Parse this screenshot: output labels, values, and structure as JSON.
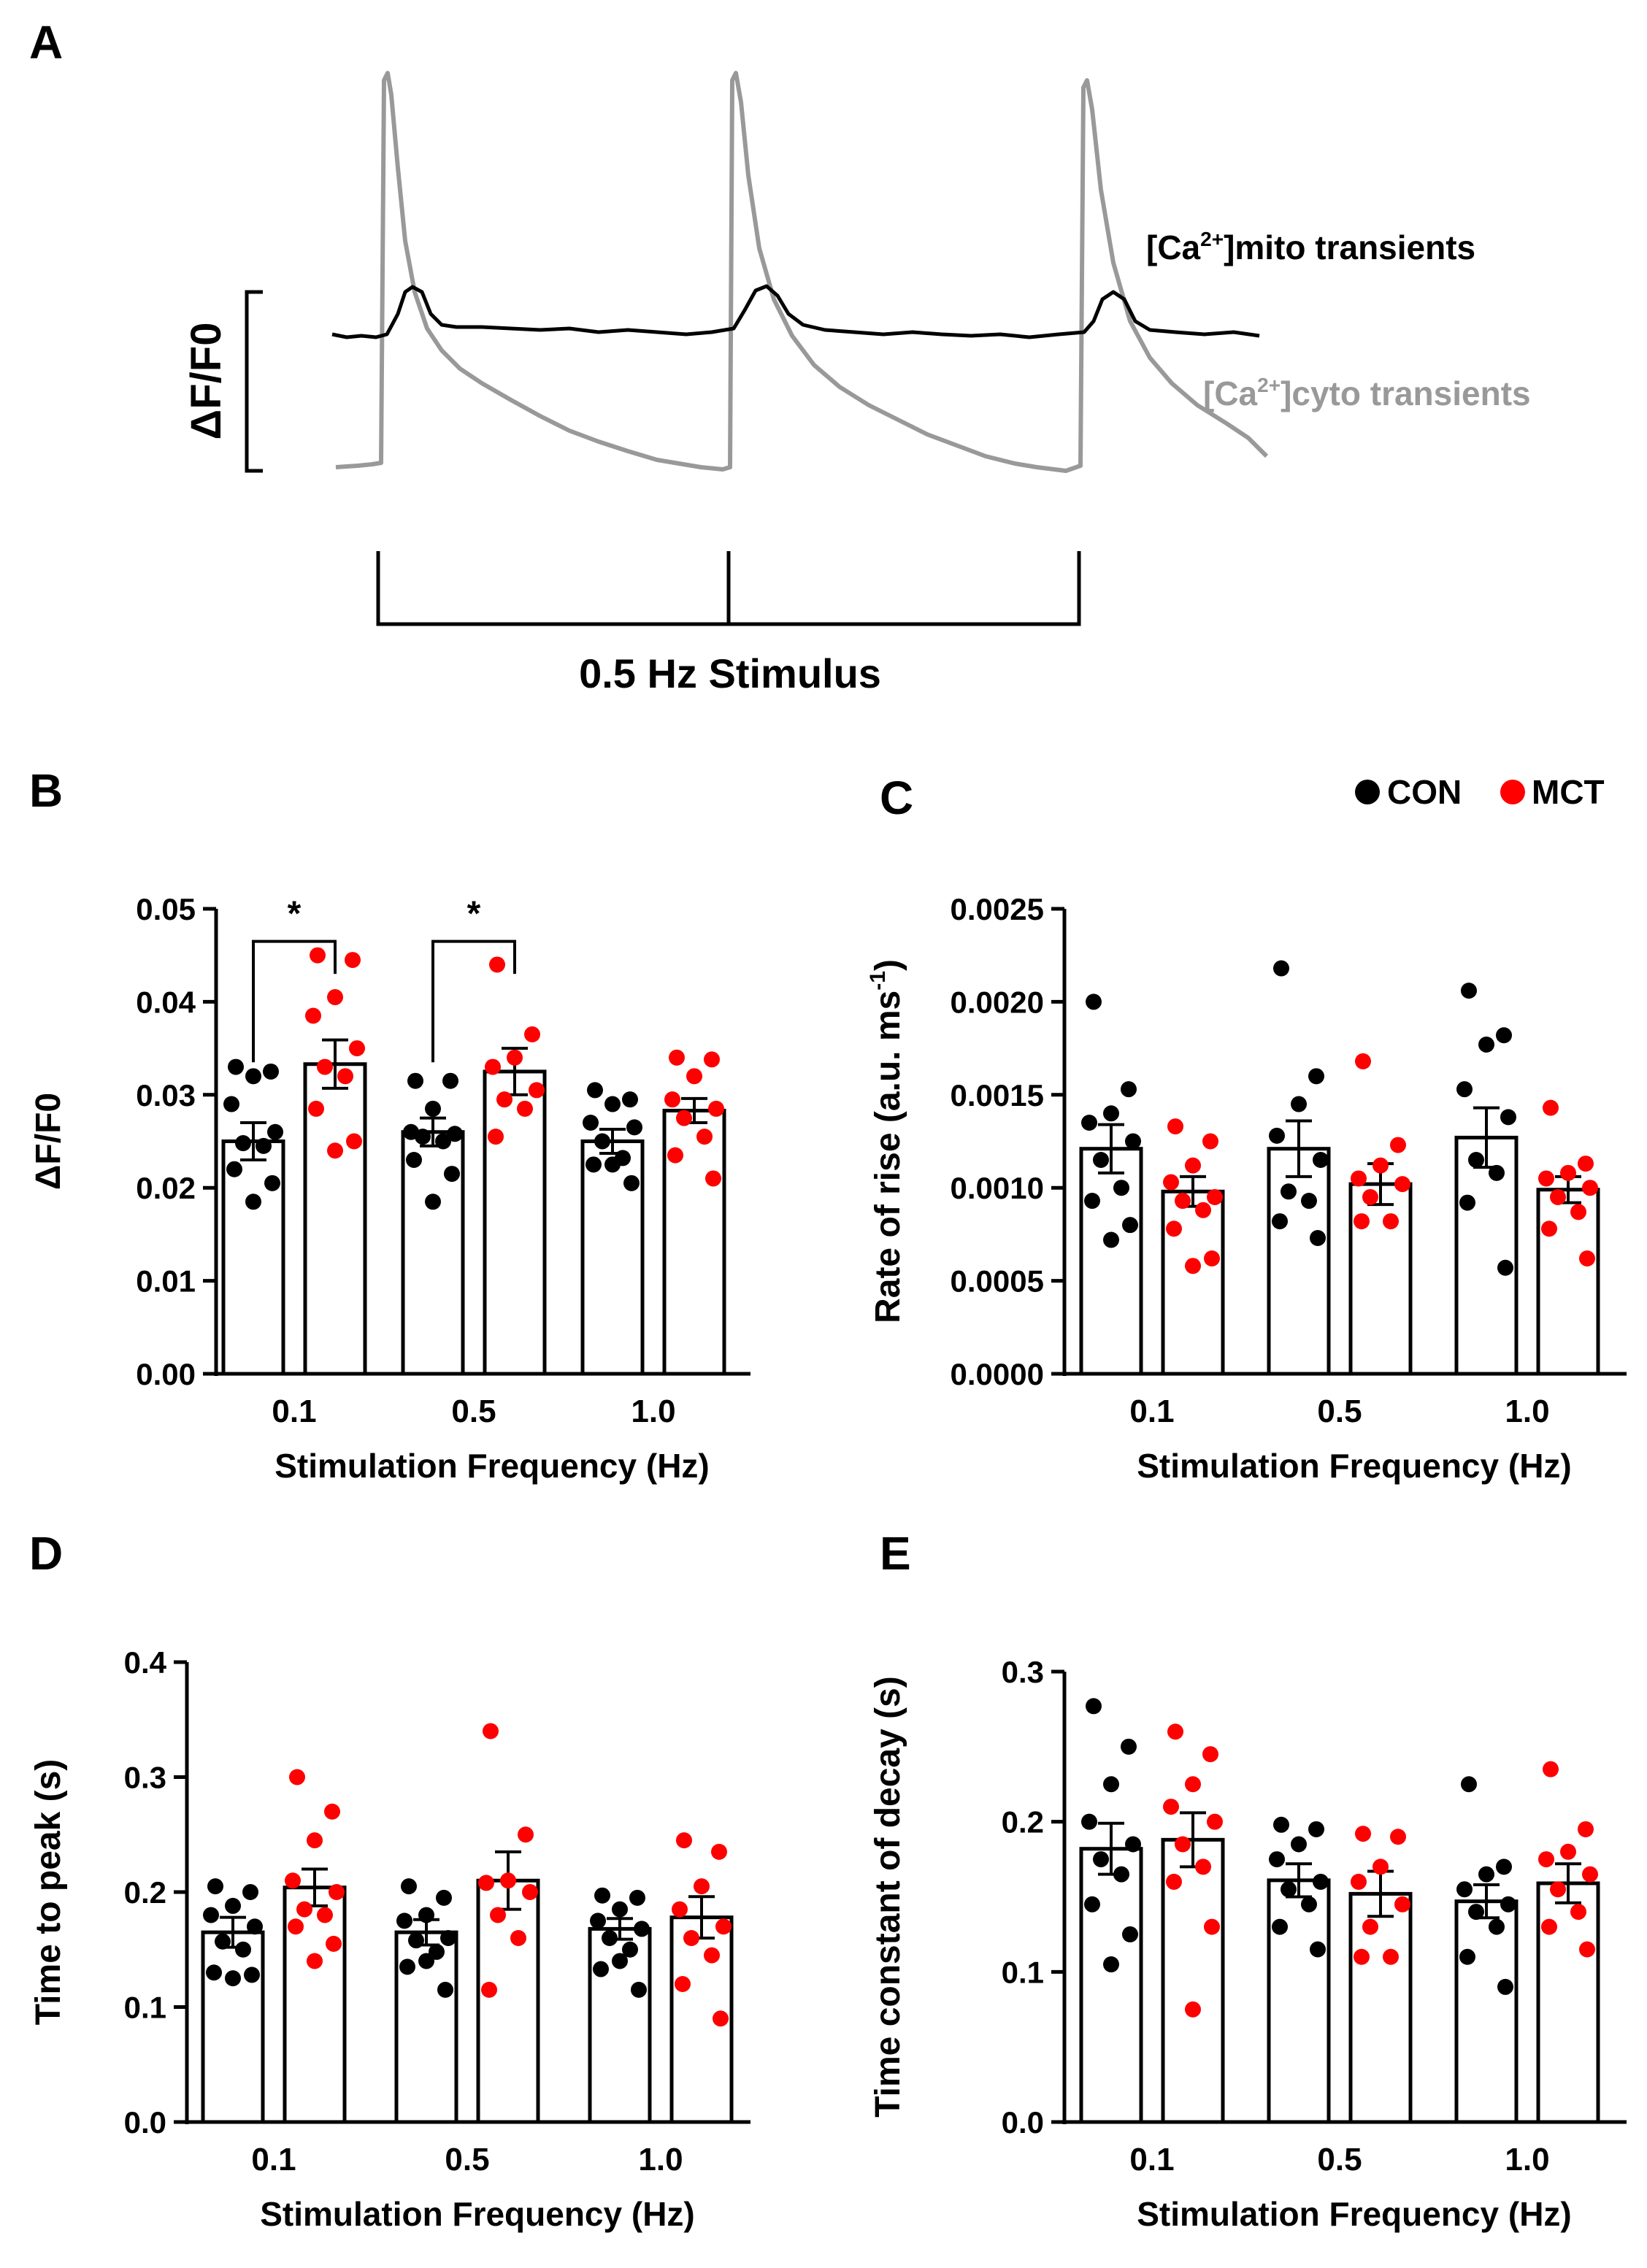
{
  "figure": {
    "legend": {
      "items": [
        {
          "label": "CON",
          "color": "#000000"
        },
        {
          "label": "MCT",
          "color": "#ff0000"
        }
      ]
    },
    "colors": {
      "con": "#000000",
      "mct": "#ff0000",
      "cyto_trace": "#999999",
      "mito_trace": "#000000"
    }
  },
  "chart_data": [
    {
      "panel": "A",
      "type": "line",
      "title": "",
      "ylabel": "ΔF/F0",
      "stimulus_label": "0.5 Hz Stimulus",
      "series": [
        {
          "name": "[Ca2+]mito transients",
          "label_main": "[Ca",
          "label_sup": "2+",
          "label_tail": "]mito transients",
          "color": "#000000"
        },
        {
          "name": "[Ca2+]cyto transients",
          "label_main": "[Ca",
          "label_sup": "2+",
          "label_tail": "]cyto transients",
          "color": "#999999"
        }
      ]
    },
    {
      "panel": "B",
      "type": "bar",
      "title": "",
      "xlabel": "Stimulation Frequency (Hz)",
      "ylabel": "ΔF/F0",
      "categories": [
        "0.1",
        "0.5",
        "1.0"
      ],
      "ylim": [
        0,
        0.05
      ],
      "yticks": [
        "0.00",
        "0.01",
        "0.02",
        "0.03",
        "0.04",
        "0.05"
      ],
      "significance": [
        {
          "category": "0.1",
          "label": "*"
        },
        {
          "category": "0.5",
          "label": "*"
        }
      ],
      "series": [
        {
          "name": "CON",
          "color": "#000000",
          "mean": [
            0.025,
            0.026,
            0.025
          ],
          "sem": [
            0.002,
            0.0015,
            0.0013
          ],
          "points": [
            [
              0.033,
              0.0325,
              0.032,
              0.029,
              0.026,
              0.0248,
              0.0245,
              0.022,
              0.0205,
              0.0185
            ],
            [
              0.0315,
              0.0315,
              0.0285,
              0.026,
              0.0258,
              0.0255,
              0.025,
              0.023,
              0.0215,
              0.0185
            ],
            [
              0.0305,
              0.0295,
              0.029,
              0.027,
              0.0265,
              0.025,
              0.0232,
              0.0225,
              0.0205,
              0.0225
            ]
          ]
        },
        {
          "name": "MCT",
          "color": "#ff0000",
          "mean": [
            0.0333,
            0.0325,
            0.0283
          ],
          "sem": [
            0.0026,
            0.0025,
            0.0013
          ],
          "points": [
            [
              0.045,
              0.0445,
              0.0405,
              0.0385,
              0.035,
              0.033,
              0.032,
              0.0285,
              0.025,
              0.024
            ],
            [
              0.044,
              0.0365,
              0.034,
              0.033,
              0.0305,
              0.0295,
              0.0285,
              0.0255
            ],
            [
              0.034,
              0.0338,
              0.032,
              0.0295,
              0.0285,
              0.0275,
              0.0255,
              0.0235,
              0.021
            ]
          ]
        }
      ]
    },
    {
      "panel": "C",
      "type": "bar",
      "title": "",
      "xlabel": "Stimulation Frequency (Hz)",
      "ylabel": "Rate of rise (a.u. ms",
      "ylabel_sup": "-1",
      "ylabel_tail": ")",
      "categories": [
        "0.1",
        "0.5",
        "1.0"
      ],
      "ylim": [
        0,
        0.0025
      ],
      "yticks": [
        "0.0000",
        "0.0005",
        "0.0010",
        "0.0015",
        "0.0020",
        "0.0025"
      ],
      "series": [
        {
          "name": "CON",
          "color": "#000000",
          "mean": [
            0.00121,
            0.00121,
            0.00127
          ],
          "sem": [
            0.00013,
            0.00015,
            0.00016
          ],
          "points": [
            [
              0.002,
              0.00153,
              0.0014,
              0.00135,
              0.00125,
              0.00115,
              0.001,
              0.00093,
              0.0008,
              0.00072
            ],
            [
              0.00218,
              0.0016,
              0.00145,
              0.00128,
              0.00115,
              0.00098,
              0.00093,
              0.00082,
              0.00073
            ],
            [
              0.00206,
              0.00182,
              0.00177,
              0.00153,
              0.00138,
              0.00115,
              0.00108,
              0.00092,
              0.00057
            ]
          ]
        },
        {
          "name": "MCT",
          "color": "#ff0000",
          "mean": [
            0.00098,
            0.00102,
            0.00099
          ],
          "sem": [
            8e-05,
            0.00011,
            7e-05
          ],
          "points": [
            [
              0.00133,
              0.00125,
              0.00112,
              0.00103,
              0.00095,
              0.00093,
              0.00088,
              0.00078,
              0.00062,
              0.00058
            ],
            [
              0.00168,
              0.00123,
              0.00112,
              0.00105,
              0.00102,
              0.00095,
              0.00082,
              0.00082
            ],
            [
              0.00143,
              0.00113,
              0.00108,
              0.00105,
              0.001,
              0.00095,
              0.00087,
              0.00078,
              0.00062
            ]
          ]
        }
      ]
    },
    {
      "panel": "D",
      "type": "bar",
      "title": "",
      "xlabel": "Stimulation Frequency (Hz)",
      "ylabel": "Time to peak (s)",
      "categories": [
        "0.1",
        "0.5",
        "1.0"
      ],
      "ylim": [
        0,
        0.4
      ],
      "yticks": [
        "0.0",
        "0.1",
        "0.2",
        "0.3",
        "0.4"
      ],
      "series": [
        {
          "name": "CON",
          "color": "#000000",
          "mean": [
            0.165,
            0.165,
            0.168
          ],
          "sem": [
            0.013,
            0.011,
            0.009
          ],
          "points": [
            [
              0.205,
              0.2,
              0.188,
              0.18,
              0.17,
              0.157,
              0.15,
              0.13,
              0.128,
              0.125
            ],
            [
              0.205,
              0.195,
              0.18,
              0.175,
              0.16,
              0.158,
              0.148,
              0.135,
              0.115,
              0.14
            ],
            [
              0.197,
              0.195,
              0.185,
              0.175,
              0.168,
              0.16,
              0.15,
              0.133,
              0.115,
              0.14
            ]
          ]
        },
        {
          "name": "MCT",
          "color": "#ff0000",
          "mean": [
            0.204,
            0.21,
            0.178
          ],
          "sem": [
            0.016,
            0.025,
            0.018
          ],
          "points": [
            [
              0.3,
              0.27,
              0.245,
              0.21,
              0.2,
              0.185,
              0.18,
              0.17,
              0.155,
              0.14
            ],
            [
              0.34,
              0.25,
              0.21,
              0.208,
              0.2,
              0.18,
              0.16,
              0.115
            ],
            [
              0.245,
              0.235,
              0.205,
              0.185,
              0.17,
              0.16,
              0.145,
              0.12,
              0.09
            ]
          ]
        }
      ]
    },
    {
      "panel": "E",
      "type": "bar",
      "title": "",
      "xlabel": "Stimulation Frequency (Hz)",
      "ylabel": "Time constant of decay (s)",
      "categories": [
        "0.1",
        "0.5",
        "1.0"
      ],
      "ylim": [
        0,
        0.3
      ],
      "yticks": [
        "0.0",
        "0.1",
        "0.2",
        "0.3"
      ],
      "series": [
        {
          "name": "CON",
          "color": "#000000",
          "mean": [
            0.182,
            0.161,
            0.147
          ],
          "sem": [
            0.017,
            0.011,
            0.011
          ],
          "points": [
            [
              0.277,
              0.25,
              0.225,
              0.2,
              0.185,
              0.175,
              0.165,
              0.145,
              0.125,
              0.105
            ],
            [
              0.198,
              0.195,
              0.185,
              0.175,
              0.16,
              0.155,
              0.145,
              0.13,
              0.115
            ],
            [
              0.225,
              0.17,
              0.165,
              0.155,
              0.145,
              0.14,
              0.13,
              0.11,
              0.09
            ]
          ]
        },
        {
          "name": "MCT",
          "color": "#ff0000",
          "mean": [
            0.188,
            0.152,
            0.159
          ],
          "sem": [
            0.018,
            0.015,
            0.013
          ],
          "points": [
            [
              0.26,
              0.245,
              0.225,
              0.21,
              0.2,
              0.185,
              0.17,
              0.16,
              0.13,
              0.075
            ],
            [
              0.192,
              0.19,
              0.17,
              0.16,
              0.145,
              0.13,
              0.11,
              0.11
            ],
            [
              0.235,
              0.195,
              0.18,
              0.175,
              0.165,
              0.155,
              0.14,
              0.13,
              0.115
            ]
          ]
        }
      ]
    }
  ]
}
